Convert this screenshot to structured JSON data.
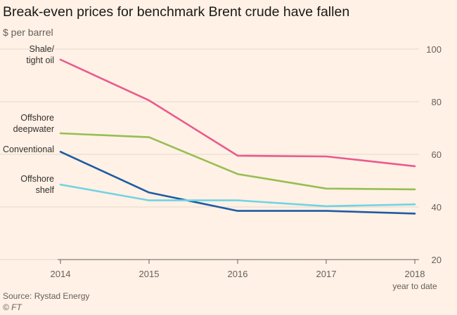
{
  "chart_data": {
    "type": "line",
    "title": "Break-even prices for benchmark Brent crude have fallen",
    "subtitle": "$ per barrel",
    "x": [
      "2014",
      "2015",
      "2016",
      "2017",
      "2018"
    ],
    "x_tick_labels": [
      "2014",
      "2015",
      "2016",
      "2017",
      "2018"
    ],
    "x_tick_note": "year to date",
    "ylim": [
      20,
      100
    ],
    "y_ticks": [
      20,
      40,
      60,
      80,
      100
    ],
    "grid": true,
    "y_axis_position": "right",
    "series": [
      {
        "name": "Shale/\ntight oil",
        "color": "#ea5a8e",
        "values": [
          96,
          80.5,
          59.5,
          59.2,
          55.5
        ]
      },
      {
        "name": "Offshore\ndeepwater",
        "color": "#96be52",
        "values": [
          68,
          66.5,
          52.5,
          47,
          46.7
        ]
      },
      {
        "name": "Conventional",
        "color": "#1e5ba2",
        "values": [
          61,
          45.5,
          38.5,
          38.5,
          37.5
        ]
      },
      {
        "name": "Offshore\nshelf",
        "color": "#72d3e3",
        "values": [
          48.5,
          42.5,
          42.5,
          40.3,
          41
        ]
      }
    ]
  },
  "source": "Source: Rystad Energy",
  "copyright": "© FT"
}
